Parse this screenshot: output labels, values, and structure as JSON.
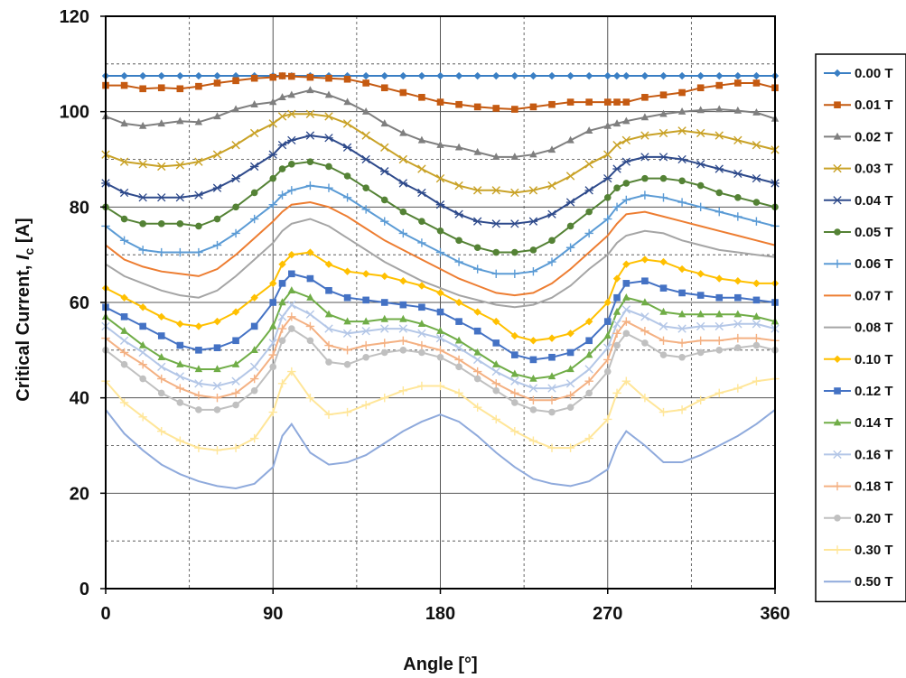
{
  "chart_data": {
    "type": "line",
    "title": "",
    "xlabel": "Angle [°]",
    "ylabel_main": "Critical Current, ",
    "ylabel_italic": "I",
    "ylabel_sub": "c",
    "ylabel_unit": " [A]",
    "xlim": [
      0,
      360
    ],
    "ylim": [
      0,
      120
    ],
    "xticks": [
      0,
      90,
      180,
      270,
      360
    ],
    "yticks": [
      0,
      20,
      40,
      60,
      80,
      100,
      120
    ],
    "grid": true,
    "legend_position": "right",
    "x": [
      0,
      10,
      20,
      30,
      40,
      50,
      60,
      70,
      80,
      90,
      95,
      100,
      110,
      120,
      130,
      140,
      150,
      160,
      170,
      180,
      190,
      200,
      210,
      220,
      230,
      240,
      250,
      260,
      270,
      275,
      280,
      290,
      300,
      310,
      320,
      330,
      340,
      350,
      360
    ],
    "series": [
      {
        "name": "0.00 T",
        "color": "#3a7fc4",
        "marker": "diamond",
        "values": [
          107.5,
          107.5,
          107.5,
          107.5,
          107.5,
          107.5,
          107.5,
          107.5,
          107.5,
          107.5,
          107.5,
          107.5,
          107.5,
          107.5,
          107.5,
          107.5,
          107.5,
          107.5,
          107.5,
          107.5,
          107.5,
          107.5,
          107.5,
          107.5,
          107.5,
          107.5,
          107.5,
          107.5,
          107.5,
          107.5,
          107.5,
          107.5,
          107.5,
          107.5,
          107.5,
          107.5,
          107.5,
          107.5,
          107.5
        ]
      },
      {
        "name": "0.01 T",
        "color": "#c55a11",
        "marker": "square",
        "values": [
          105.5,
          105.5,
          104.8,
          105,
          104.8,
          105.3,
          106,
          106.5,
          107,
          107.2,
          107.5,
          107.4,
          107.2,
          107,
          106.8,
          106,
          105,
          104,
          103,
          102,
          101.5,
          101,
          100.7,
          100.5,
          101,
          101.5,
          102,
          102,
          102,
          102,
          102,
          103,
          103.5,
          104,
          105,
          105.5,
          106,
          106,
          105
        ]
      },
      {
        "name": "0.02 T",
        "color": "#7f7f7f",
        "marker": "triangle",
        "values": [
          99,
          97.5,
          97,
          97.5,
          98,
          97.8,
          99,
          100.5,
          101.5,
          102,
          103,
          103.5,
          104.5,
          103.5,
          102,
          100,
          97.5,
          95.5,
          94,
          93,
          92.5,
          91.5,
          90.5,
          90.5,
          91,
          92,
          94,
          96,
          97,
          97.5,
          98,
          98.8,
          99.5,
          100,
          100.3,
          100.5,
          100.2,
          99.8,
          98.5
        ]
      },
      {
        "name": "0.03 T",
        "color": "#c9a227",
        "marker": "x",
        "values": [
          91,
          89.5,
          89,
          88.5,
          88.8,
          89.5,
          91,
          93,
          95.5,
          97.5,
          99,
          99.5,
          99.5,
          99,
          97.5,
          95,
          92.5,
          90,
          88,
          86,
          84.5,
          83.5,
          83.5,
          83,
          83.5,
          84.5,
          86.5,
          89,
          91,
          93,
          94,
          95,
          95.5,
          96,
          95.5,
          95,
          94,
          93,
          92
        ]
      },
      {
        "name": "0.04 T",
        "color": "#2e4a8b",
        "marker": "star",
        "values": [
          85,
          83,
          82,
          82,
          82,
          82.5,
          84,
          86,
          88.5,
          91,
          93,
          94,
          95,
          94.5,
          92.5,
          90,
          87.5,
          85,
          83,
          80.5,
          78.5,
          77,
          76.5,
          76.5,
          77,
          78.5,
          81,
          83.5,
          86,
          88,
          89.5,
          90.5,
          90.5,
          90,
          89,
          88,
          87,
          86,
          85
        ]
      },
      {
        "name": "0.05 T",
        "color": "#548235",
        "marker": "circle",
        "values": [
          80,
          77.5,
          76.5,
          76.5,
          76.5,
          76,
          77.5,
          80,
          83,
          86,
          88,
          89,
          89.5,
          88.5,
          86.5,
          84,
          81.5,
          79,
          77,
          75,
          73,
          71.5,
          70.5,
          70.5,
          71,
          73,
          76,
          79,
          82,
          84,
          85,
          86,
          86,
          85.5,
          84.5,
          83,
          82,
          81,
          80
        ]
      },
      {
        "name": "0.06 T",
        "color": "#5b9bd5",
        "marker": "plus",
        "values": [
          76,
          73,
          71,
          70.5,
          70.5,
          70.5,
          72,
          74.5,
          77.5,
          80.5,
          82.5,
          83.5,
          84.5,
          84,
          82,
          79.5,
          77,
          74.5,
          72.5,
          70.5,
          68.5,
          67,
          66,
          66,
          66.5,
          68.5,
          71.5,
          74.5,
          77.5,
          80,
          81.5,
          82.5,
          82,
          81,
          80,
          79,
          78,
          77,
          76
        ]
      },
      {
        "name": "0.07 T",
        "color": "#ed7d31",
        "marker": "none",
        "values": [
          72,
          69,
          67.5,
          66.5,
          66,
          65.5,
          67,
          70,
          73.5,
          77,
          79,
          80.5,
          81,
          80,
          78,
          75.5,
          73,
          71,
          69,
          67,
          65,
          63.5,
          62,
          61.5,
          62,
          64,
          67,
          70.5,
          74,
          76.5,
          78.5,
          79,
          78,
          77,
          76,
          75,
          74,
          73,
          72
        ]
      },
      {
        "name": "0.08 T",
        "color": "#a5a5a5",
        "marker": "none",
        "values": [
          68,
          65.5,
          64,
          62.5,
          61.5,
          61,
          62.5,
          65.5,
          69,
          72.5,
          75,
          76.5,
          77.5,
          76,
          73.5,
          71,
          68.5,
          66.5,
          64.5,
          63,
          61.5,
          60.5,
          59.5,
          59,
          59.5,
          61,
          63.5,
          67,
          70,
          72.5,
          74,
          75,
          74.5,
          73,
          72,
          71,
          70.5,
          70,
          69.5
        ]
      },
      {
        "name": "0.10 T",
        "color": "#ffc000",
        "marker": "diamond",
        "values": [
          63,
          61,
          59,
          57,
          55.5,
          55,
          56,
          58,
          61,
          64,
          68,
          70,
          70.5,
          68,
          66.5,
          66,
          65.5,
          64.5,
          63.5,
          62,
          60,
          58,
          56,
          53,
          52,
          52.5,
          53.5,
          56,
          60,
          65,
          68,
          69,
          68.5,
          67,
          66,
          65,
          64.5,
          64,
          64
        ]
      },
      {
        "name": "0.12 T",
        "color": "#4472c4",
        "marker": "square",
        "values": [
          59,
          57,
          55,
          53,
          51,
          50,
          50.5,
          52,
          55,
          60,
          64,
          66,
          65,
          62.5,
          61,
          60.5,
          60,
          59.5,
          59,
          58,
          56,
          54,
          51.5,
          49,
          48,
          48.5,
          49.5,
          52,
          56,
          61,
          64,
          64.5,
          63,
          62,
          61.5,
          61,
          61,
          60.5,
          60
        ]
      },
      {
        "name": "0.14 T",
        "color": "#70ad47",
        "marker": "triangle",
        "values": [
          57,
          54,
          51,
          48.5,
          47,
          46,
          46,
          47,
          50,
          55,
          60,
          62.5,
          61,
          57.5,
          56,
          56,
          56.5,
          56.5,
          55.5,
          54,
          52,
          49.5,
          47,
          45,
          44,
          44.5,
          46,
          49,
          53,
          58,
          61,
          60,
          58,
          57.5,
          57.5,
          57.5,
          57.5,
          57,
          56
        ]
      },
      {
        "name": "0.16 T",
        "color": "#b4c7e7",
        "marker": "x",
        "values": [
          55,
          52,
          49.5,
          46.5,
          44.5,
          43,
          42.5,
          43.5,
          46.5,
          51.5,
          57,
          59.5,
          57.5,
          54.5,
          53.5,
          54,
          54.5,
          54.5,
          53.5,
          52.5,
          50.5,
          48,
          45.5,
          43.5,
          42,
          42,
          43,
          46,
          50.5,
          55.5,
          58.5,
          57,
          55,
          54.5,
          55,
          55,
          55.5,
          55.5,
          54.5
        ]
      },
      {
        "name": "0.18 T",
        "color": "#f4b183",
        "marker": "plus",
        "values": [
          52.5,
          49.5,
          47,
          44,
          42,
          40.5,
          40,
          41,
          44,
          49,
          54.5,
          57,
          55,
          51,
          50,
          51,
          51.5,
          52,
          51,
          50,
          48,
          45.5,
          43,
          41,
          39.5,
          39.5,
          40.5,
          43.5,
          48,
          53.5,
          56,
          54,
          52,
          51.5,
          52,
          52,
          52.5,
          52.5,
          52
        ]
      },
      {
        "name": "0.20 T",
        "color": "#c0c0c0",
        "marker": "circle",
        "values": [
          50,
          47,
          44,
          41,
          39,
          37.5,
          37.5,
          38.5,
          41.5,
          46.5,
          52,
          54.5,
          52,
          47.5,
          47,
          48.5,
          49.5,
          50,
          49.5,
          48.5,
          46.5,
          44,
          41.5,
          39,
          37.5,
          37,
          38,
          41,
          45.5,
          51,
          53.5,
          51.5,
          49,
          48.5,
          49.5,
          50,
          50.5,
          51,
          50
        ]
      },
      {
        "name": "0.30 T",
        "color": "#ffe699",
        "marker": "plus",
        "values": [
          43.5,
          39,
          36,
          33,
          31,
          29.5,
          29,
          29.5,
          31.5,
          37,
          43,
          45.5,
          40,
          36.5,
          37,
          38.5,
          40,
          41.5,
          42.5,
          42.5,
          41,
          38,
          35.5,
          33,
          31,
          29.5,
          29.5,
          31.5,
          35.5,
          41,
          43.5,
          40,
          37,
          37.5,
          39.5,
          41,
          42,
          43.5,
          44
        ]
      },
      {
        "name": "0.50 T",
        "color": "#8faadc",
        "marker": "none",
        "values": [
          37.5,
          32.5,
          29,
          26,
          24,
          22.5,
          21.5,
          21,
          22,
          25.5,
          32,
          34.5,
          28.5,
          26,
          26.5,
          28,
          30.5,
          33,
          35,
          36.5,
          35,
          32,
          28.5,
          25.5,
          23,
          22,
          21.5,
          22.5,
          25,
          30,
          33,
          30,
          26.5,
          26.5,
          28,
          30,
          32,
          34.5,
          37.5
        ]
      }
    ]
  }
}
